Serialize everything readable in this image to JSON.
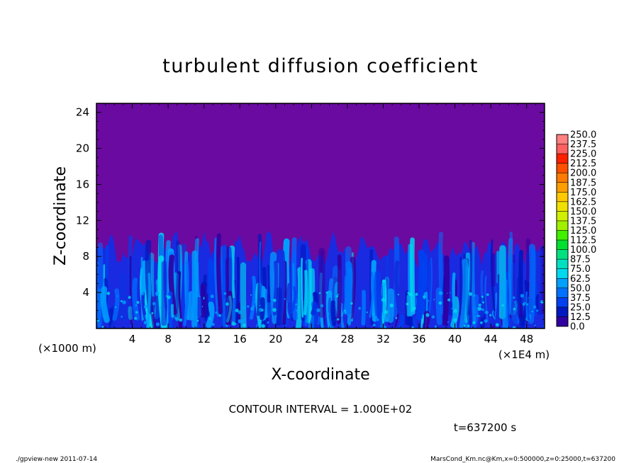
{
  "chart_data": {
    "type": "heatmap",
    "title": "turbulent diffusion coefficient",
    "xlabel": "X-coordinate",
    "ylabel": "Z-coordinate",
    "x_unit": "(×1E4 m)",
    "y_unit": "(×1000 m)",
    "xlim": [
      0,
      50
    ],
    "ylim": [
      0,
      25
    ],
    "x_ticks": [
      4,
      8,
      12,
      16,
      20,
      24,
      28,
      32,
      36,
      40,
      44,
      48
    ],
    "x_tick_labels": [
      "4",
      "8",
      "12",
      "16",
      "20",
      "24",
      "28",
      "32",
      "36",
      "40",
      "44",
      "48"
    ],
    "y_ticks": [
      4,
      8,
      12,
      16,
      20,
      24
    ],
    "y_tick_labels": [
      "4",
      "8",
      "12",
      "16",
      "20",
      "24"
    ],
    "colorbar": {
      "levels": [
        "250.0",
        "237.5",
        "225.0",
        "212.5",
        "200.0",
        "187.5",
        "175.0",
        "162.5",
        "150.0",
        "137.5",
        "125.0",
        "112.5",
        "100.0",
        "87.5",
        "75.0",
        "62.5",
        "50.0",
        "37.5",
        "25.0",
        "12.5",
        "0.0"
      ],
      "colors": [
        "#ff8080",
        "#ff6060",
        "#ff2000",
        "#ff5000",
        "#ff7a00",
        "#ff9e00",
        "#ffc800",
        "#f0e000",
        "#d0f000",
        "#a0f000",
        "#40f000",
        "#00e030",
        "#00e080",
        "#00e0c0",
        "#00d8f0",
        "#00a0ff",
        "#0070ff",
        "#0040f0",
        "#0018c0",
        "#3000a0",
        "#6a0aa0"
      ]
    },
    "turbulent_layer_top_approx": 9.5,
    "background_value_above_layer": 0.0
  },
  "contour_interval": "CONTOUR INTERVAL = 1.000E+02",
  "time_label": "t=637200 s",
  "footer": {
    "left": "./gpview-new   2011-07-14",
    "right": "MarsCond_Km.nc@Km,x=0:500000,z=0:25000,t=637200"
  }
}
